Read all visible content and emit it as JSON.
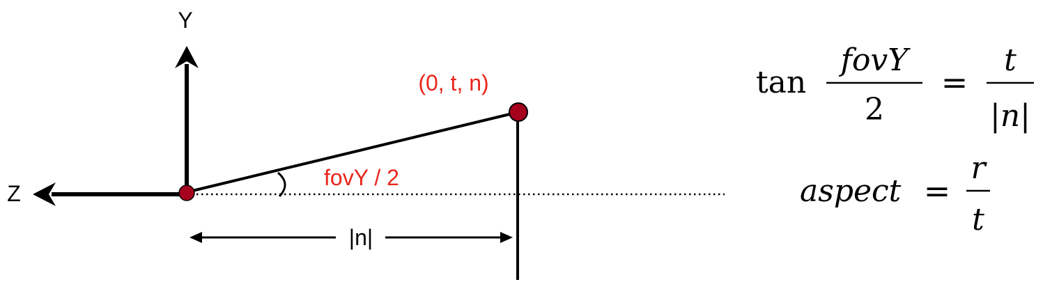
{
  "axes": {
    "y_label": "Y",
    "z_label": "Z"
  },
  "labels": {
    "point": "(0, t, n)",
    "angle": "fovY / 2",
    "distance": "|n|"
  },
  "formulas": {
    "tan_func": "tan",
    "tan_numerator": "fovY",
    "tan_denominator": "2",
    "equals": "=",
    "tan_rhs_numerator": "t",
    "tan_rhs_denominator": "|n|",
    "aspect_lhs": "aspect",
    "aspect_numerator": "r",
    "aspect_denominator": "t"
  },
  "colors": {
    "accent": "#e8261c",
    "point_fill": "#a5001d",
    "ink": "#000000"
  }
}
